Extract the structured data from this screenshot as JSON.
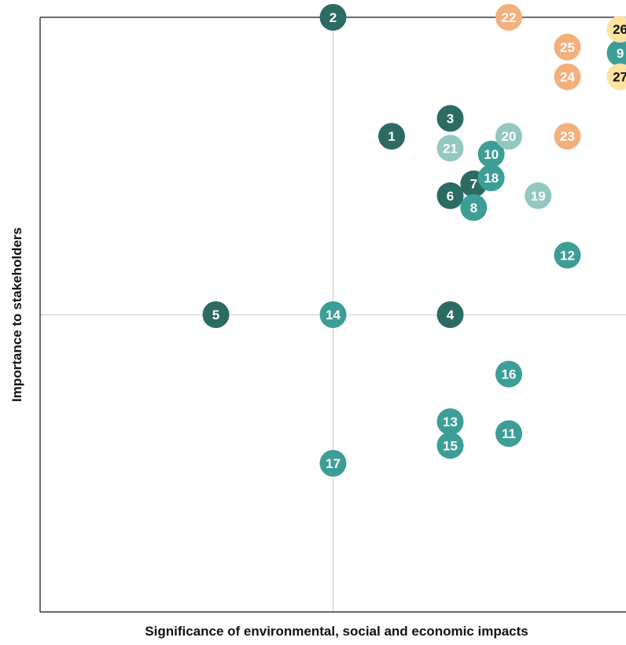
{
  "chart_data": {
    "type": "scatter",
    "title": "",
    "xlabel": "Significance of environmental, social and economic impacts",
    "ylabel": "Importance to stakeholders",
    "xlim": [
      0,
      10
    ],
    "ylim": [
      0,
      10
    ],
    "grid": "quadrant lines at midpoints",
    "legend": "none",
    "colors": {
      "dark": "#2b6b63",
      "teal": "#3d9e96",
      "light": "#92c8c0",
      "orange": "#f4b07c",
      "yellow": "#fde2a2",
      "label_light": "#ffffff",
      "label_dark": "#111111"
    },
    "points": [
      {
        "label": "1",
        "x": 6.0,
        "y": 8.0,
        "color": "dark"
      },
      {
        "label": "2",
        "x": 5.0,
        "y": 10.0,
        "color": "dark"
      },
      {
        "label": "3",
        "x": 7.0,
        "y": 8.3,
        "color": "dark"
      },
      {
        "label": "4",
        "x": 7.0,
        "y": 5.0,
        "color": "dark"
      },
      {
        "label": "5",
        "x": 3.0,
        "y": 5.0,
        "color": "dark"
      },
      {
        "label": "6",
        "x": 7.0,
        "y": 7.0,
        "color": "dark"
      },
      {
        "label": "7",
        "x": 7.4,
        "y": 7.2,
        "color": "dark"
      },
      {
        "label": "8",
        "x": 7.4,
        "y": 6.8,
        "color": "teal"
      },
      {
        "label": "9",
        "x": 9.9,
        "y": 9.4,
        "color": "teal"
      },
      {
        "label": "10",
        "x": 7.7,
        "y": 7.7,
        "color": "teal"
      },
      {
        "label": "11",
        "x": 8.0,
        "y": 3.0,
        "color": "teal"
      },
      {
        "label": "12",
        "x": 9.0,
        "y": 6.0,
        "color": "teal"
      },
      {
        "label": "13",
        "x": 7.0,
        "y": 3.2,
        "color": "teal"
      },
      {
        "label": "14",
        "x": 5.0,
        "y": 5.0,
        "color": "teal"
      },
      {
        "label": "15",
        "x": 7.0,
        "y": 2.8,
        "color": "teal"
      },
      {
        "label": "16",
        "x": 8.0,
        "y": 4.0,
        "color": "teal"
      },
      {
        "label": "17",
        "x": 5.0,
        "y": 2.5,
        "color": "teal"
      },
      {
        "label": "18",
        "x": 7.7,
        "y": 7.3,
        "color": "teal"
      },
      {
        "label": "19",
        "x": 8.5,
        "y": 7.0,
        "color": "light"
      },
      {
        "label": "20",
        "x": 8.0,
        "y": 8.0,
        "color": "light"
      },
      {
        "label": "21",
        "x": 7.0,
        "y": 7.8,
        "color": "light"
      },
      {
        "label": "22",
        "x": 8.0,
        "y": 10.0,
        "color": "orange"
      },
      {
        "label": "23",
        "x": 9.0,
        "y": 8.0,
        "color": "orange"
      },
      {
        "label": "24",
        "x": 9.0,
        "y": 9.0,
        "color": "orange"
      },
      {
        "label": "25",
        "x": 9.0,
        "y": 9.5,
        "color": "orange"
      },
      {
        "label": "26",
        "x": 9.9,
        "y": 9.8,
        "color": "yellow"
      },
      {
        "label": "27",
        "x": 9.9,
        "y": 9.0,
        "color": "yellow"
      }
    ]
  }
}
